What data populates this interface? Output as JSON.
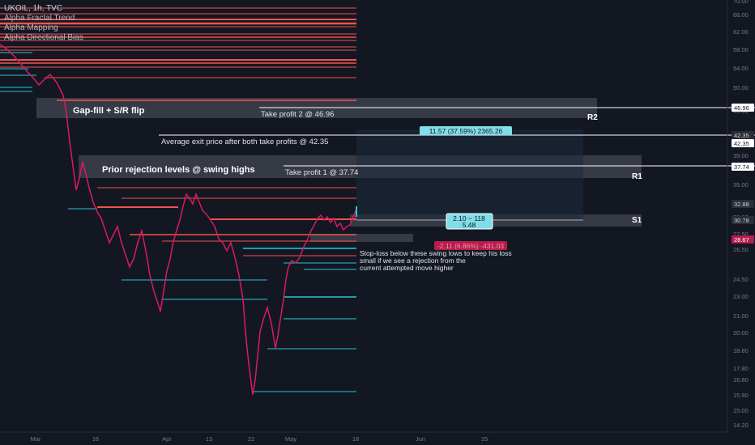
{
  "header": {
    "symbol": "UKOIL, 1h, TVC",
    "indicators": [
      "Alpha Fractal Trend",
      "Alpha Mapping",
      "Alpha Directional Bias"
    ]
  },
  "annotations": {
    "gap_fill": "Gap-fill + S/R flip",
    "prior_rejection": "Prior rejection levels @ swing highs",
    "take_profit_2": "Take profit 2 @ 46.96",
    "take_profit_1": "Take profit 1 @ 37.74",
    "avg_exit": "Average exit price after both take profits @ 42.35",
    "stoploss_note": [
      "Stop-loss below these swing lows to keep his loss",
      "small if we see a rejection from the",
      "current attempted move higher"
    ],
    "zone_r2": "R2",
    "zone_r1": "R1",
    "zone_s1": "S1",
    "target_box": "11.57 (37.59%) 2365.26",
    "position_box": [
      "2.10 ~ 118",
      "5.48"
    ],
    "stop_box": "-2.11 (6.86%) -431.03"
  },
  "price_axis": {
    "ticks": [
      "70.00",
      "66.00",
      "62.00",
      "58.00",
      "54.00",
      "50.00",
      "46.00",
      "42.00",
      "39.00",
      "35.00",
      "32.00",
      "30.00",
      "27.50",
      "26.50",
      "24.50",
      "23.00",
      "21.00",
      "20.00",
      "18.80",
      "17.80",
      "16.80",
      "15.90",
      "15.00",
      "14.20"
    ],
    "badges": [
      {
        "label": "46.96",
        "bg": "#ffffff",
        "fg": "#131722"
      },
      {
        "label": "42.35",
        "bg": "#2a2e39",
        "fg": "#d1d4dc"
      },
      {
        "label": "42.35",
        "bg": "#ffffff",
        "fg": "#131722"
      },
      {
        "label": "37.74",
        "bg": "#ffffff",
        "fg": "#131722"
      },
      {
        "label": "32.88",
        "bg": "#2a2e39",
        "fg": "#d1d4dc"
      },
      {
        "label": "30.78",
        "bg": "#2a2e39",
        "fg": "#d1d4dc"
      },
      {
        "label": "28.67",
        "bg": "#b71c4e",
        "fg": "#ffffff"
      }
    ]
  },
  "time_axis": {
    "ticks": [
      "Mar",
      "16",
      "Apr",
      "13",
      "22",
      "May",
      "18",
      "Jun",
      "15"
    ]
  },
  "colors": {
    "background": "#131722",
    "resistance": "#ef5350",
    "support": "#26c6da",
    "candles": "#d81b60",
    "target_box": "#80deea",
    "stop_box": "#b71c4e"
  }
}
